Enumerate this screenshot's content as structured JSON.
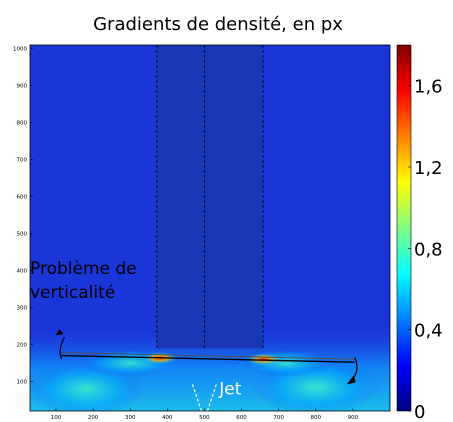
{
  "chart_data": {
    "type": "heatmap",
    "title": "Gradients de densité, en px",
    "xlabel": "",
    "ylabel": "",
    "xlim": [
      30,
      1000
    ],
    "ylim": [
      20,
      1010
    ],
    "x_ticks": [
      100,
      200,
      300,
      400,
      500,
      600,
      700,
      800,
      900
    ],
    "y_ticks": [
      100,
      200,
      300,
      400,
      500,
      600,
      700,
      800,
      900,
      1000
    ],
    "colorbar": {
      "colormap": "jet",
      "range": [
        0,
        1.8
      ],
      "ticks": [
        0,
        0.4,
        0.8,
        1.2,
        1.6
      ],
      "tick_labels": [
        "0",
        "0,4",
        "0,8",
        "1,2",
        "1,6"
      ]
    },
    "background_value": 0.12,
    "masked_region": {
      "x": [
        372,
        658
      ],
      "y": [
        20,
        1010
      ],
      "value": 0.06
    },
    "dashed_lines_x": [
      372,
      500,
      658
    ],
    "high_gradient_band": {
      "y_range": [
        20,
        200
      ],
      "peak_points": [
        {
          "x": 380,
          "y": 163,
          "value": 1.5
        },
        {
          "x": 660,
          "y": 160,
          "value": 1.3
        }
      ]
    },
    "reference_line": {
      "x": [
        115,
        905
      ],
      "y": [
        170,
        152
      ]
    },
    "annotations": [
      {
        "text": "Problème de",
        "x": 30,
        "y": 390
      },
      {
        "text": "verticalité",
        "x": 30,
        "y": 325
      },
      {
        "text": "Jet",
        "x": 540,
        "y": 65
      }
    ],
    "colors": {
      "background": "#1a35d8",
      "mask": "#1838b6",
      "colormap_stops": [
        "#000080",
        "#0000ff",
        "#0080ff",
        "#00ffff",
        "#80ff80",
        "#ffff00",
        "#ff8000",
        "#ff0000",
        "#800000"
      ]
    }
  }
}
